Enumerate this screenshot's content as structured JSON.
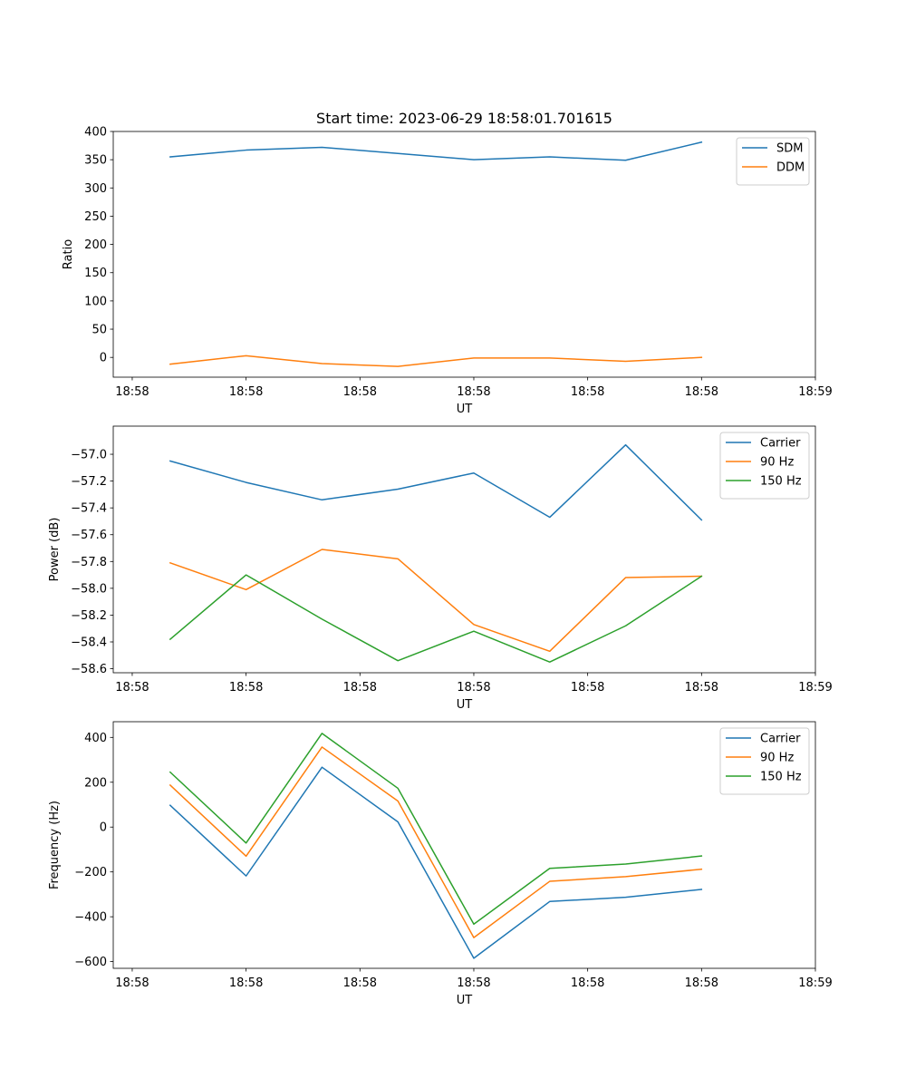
{
  "title": "Start time: 2023-06-29 18:58:01.701615",
  "colors": {
    "blue": "#1f77b4",
    "orange": "#ff7f0e",
    "green": "#2ca02c"
  },
  "chart_data": [
    {
      "type": "line",
      "xlabel": "UT",
      "ylabel": "Ratio",
      "x": [
        1,
        2,
        3,
        4,
        5,
        6,
        7,
        8
      ],
      "xlim": [
        0.25,
        9.5
      ],
      "xticks": [
        0.5,
        2,
        3.5,
        5,
        6.5,
        8,
        9.5
      ],
      "xtick_labels": [
        "18:58",
        "18:58",
        "18:58",
        "18:58",
        "18:58",
        "18:58",
        "18:59"
      ],
      "ylim": [
        -35,
        400
      ],
      "yticks": [
        0,
        50,
        100,
        150,
        200,
        250,
        300,
        350,
        400
      ],
      "ytick_labels": [
        "0",
        "50",
        "100",
        "150",
        "200",
        "250",
        "300",
        "350",
        "400"
      ],
      "legend": "top-right",
      "series": [
        {
          "name": "SDM",
          "color": "#1f77b4",
          "values": [
            355,
            367,
            372,
            361,
            350,
            355,
            349,
            381
          ]
        },
        {
          "name": "DDM",
          "color": "#ff7f0e",
          "values": [
            -12,
            3,
            -11,
            -16,
            -1,
            -1,
            -7,
            0
          ]
        }
      ]
    },
    {
      "type": "line",
      "xlabel": "UT",
      "ylabel": "Power (dB)",
      "x": [
        1,
        2,
        3,
        4,
        5,
        6,
        7,
        8
      ],
      "xlim": [
        0.25,
        9.5
      ],
      "xticks": [
        0.5,
        2,
        3.5,
        5,
        6.5,
        8,
        9.5
      ],
      "xtick_labels": [
        "18:58",
        "18:58",
        "18:58",
        "18:58",
        "18:58",
        "18:58",
        "18:59"
      ],
      "ylim": [
        -58.63,
        -56.79
      ],
      "yticks": [
        -57.0,
        -57.2,
        -57.4,
        -57.6,
        -57.8,
        -58.0,
        -58.2,
        -58.4,
        -58.6
      ],
      "ytick_labels": [
        "−57.0",
        "−57.2",
        "−57.4",
        "−57.6",
        "−57.8",
        "−58.0",
        "−58.2",
        "−58.4",
        "−58.6"
      ],
      "legend": "top-right",
      "series": [
        {
          "name": "Carrier",
          "color": "#1f77b4",
          "values": [
            -57.05,
            -57.21,
            -57.34,
            -57.26,
            -57.14,
            -57.47,
            -56.93,
            -57.49
          ]
        },
        {
          "name": "90 Hz",
          "color": "#ff7f0e",
          "values": [
            -57.81,
            -58.01,
            -57.71,
            -57.78,
            -58.27,
            -58.47,
            -57.92,
            -57.91
          ]
        },
        {
          "name": "150 Hz",
          "color": "#2ca02c",
          "values": [
            -58.38,
            -57.9,
            -58.23,
            -58.54,
            -58.32,
            -58.55,
            -58.28,
            -57.91
          ]
        }
      ]
    },
    {
      "type": "line",
      "xlabel": "UT",
      "ylabel": "Frequency (Hz)",
      "x": [
        1,
        2,
        3,
        4,
        5,
        6,
        7,
        8
      ],
      "xlim": [
        0.25,
        9.5
      ],
      "xticks": [
        0.5,
        2,
        3.5,
        5,
        6.5,
        8,
        9.5
      ],
      "xtick_labels": [
        "18:58",
        "18:58",
        "18:58",
        "18:58",
        "18:58",
        "18:58",
        "18:59"
      ],
      "ylim": [
        -630,
        470
      ],
      "yticks": [
        400,
        200,
        0,
        -200,
        -400,
        -600
      ],
      "ytick_labels": [
        "400",
        "200",
        "0",
        "−200",
        "−400",
        "−600"
      ],
      "legend": "top-right",
      "series": [
        {
          "name": "Carrier",
          "color": "#1f77b4",
          "values": [
            97,
            -218,
            267,
            23,
            -585,
            -332,
            -313,
            -278
          ]
        },
        {
          "name": "90 Hz",
          "color": "#ff7f0e",
          "values": [
            187,
            -130,
            357,
            116,
            -493,
            -242,
            -221,
            -188
          ]
        },
        {
          "name": "150 Hz",
          "color": "#2ca02c",
          "values": [
            245,
            -71,
            418,
            173,
            -433,
            -184,
            -165,
            -129
          ]
        }
      ]
    }
  ]
}
